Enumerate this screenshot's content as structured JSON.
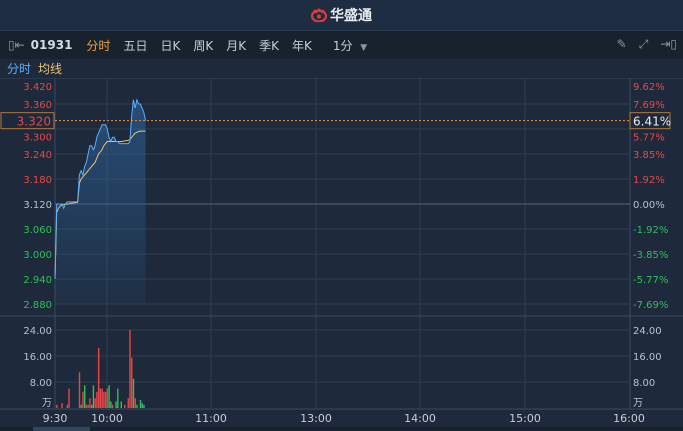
{
  "header": {
    "brand": "华盛通",
    "logo_icon": "huasheng-logo-icon"
  },
  "toolbar": {
    "code": "01931",
    "tabs": [
      "分时",
      "五日",
      "日K",
      "周K",
      "月K",
      "季K",
      "年K"
    ],
    "active_tab": "分时",
    "interval": "1分",
    "icons": [
      "collapse-left-icon",
      "pencil-icon",
      "fullscreen-icon",
      "expand-right-icon"
    ]
  },
  "legend": {
    "price": "分时",
    "avg": "均线"
  },
  "colors": {
    "up": "#e84646",
    "down": "#2fbf5b",
    "price_line": "#5aaeff",
    "avg_line": "#f0c36a",
    "cursor": "#e8903a"
  },
  "chart_data": {
    "type": "line",
    "prev_close": 3.12,
    "current_price": "3.320",
    "current_pct": "6.41%",
    "price_ticks": [
      "3.420",
      "3.360",
      "3.300",
      "3.240",
      "3.180",
      "3.120",
      "3.060",
      "3.000",
      "2.940",
      "2.880"
    ],
    "pct_ticks": [
      "9.62%",
      "7.69%",
      "5.77%",
      "3.85%",
      "1.92%",
      "0.00%",
      "-1.92%",
      "-3.85%",
      "-5.77%",
      "-7.69%"
    ],
    "ylim": [
      2.88,
      3.42
    ],
    "volume_ticks": [
      "24.00",
      "16.00",
      "8.00"
    ],
    "volume_unit": "万",
    "volume_ylim": [
      0,
      24
    ],
    "time_ticks": [
      "9:30",
      "10:00",
      "11:00",
      "13:00",
      "14:00",
      "15:00",
      "16:00"
    ],
    "price": [
      2.94,
      3.12,
      3.12,
      3.12,
      3.12,
      3.11,
      3.12,
      3.125,
      3.125,
      3.125,
      3.125,
      3.125,
      3.125,
      3.125,
      3.19,
      3.2,
      3.19,
      3.21,
      3.22,
      3.24,
      3.26,
      3.26,
      3.25,
      3.26,
      3.28,
      3.29,
      3.3,
      3.31,
      3.31,
      3.31,
      3.3,
      3.28,
      3.27,
      3.28,
      3.28,
      3.27,
      3.27,
      3.265,
      3.265,
      3.265,
      3.265,
      3.265,
      3.265,
      3.27,
      3.33,
      3.37,
      3.35,
      3.37,
      3.36,
      3.36,
      3.35,
      3.34,
      3.32
    ],
    "avg": [
      2.94,
      3.1,
      3.11,
      3.115,
      3.118,
      3.118,
      3.12,
      3.12,
      3.12,
      3.122,
      3.122,
      3.123,
      3.123,
      3.124,
      3.17,
      3.18,
      3.185,
      3.19,
      3.195,
      3.2,
      3.205,
      3.21,
      3.215,
      3.22,
      3.23,
      3.24,
      3.245,
      3.25,
      3.26,
      3.265,
      3.27,
      3.27,
      3.27,
      3.27,
      3.27,
      3.27,
      3.27,
      3.27,
      3.27,
      3.27,
      3.272,
      3.272,
      3.273,
      3.275,
      3.28,
      3.285,
      3.29,
      3.292,
      3.294,
      3.295,
      3.295,
      3.295,
      3.295
    ],
    "volume": [
      0,
      1,
      0,
      0,
      1.5,
      0,
      0,
      1,
      6,
      0,
      0,
      0,
      0,
      0,
      11,
      1,
      5,
      7,
      1,
      1,
      3,
      1,
      7,
      3,
      5,
      18.5,
      6,
      6,
      5,
      5,
      6,
      7,
      2,
      1,
      0,
      2,
      6,
      0,
      2,
      0,
      1,
      0,
      3,
      24,
      15.5,
      9,
      3,
      1,
      0,
      2.5,
      1.5,
      1,
      0
    ],
    "volume_dir": [
      "u",
      "u",
      "u",
      "u",
      "u",
      "u",
      "u",
      "u",
      "u",
      "u",
      "u",
      "u",
      "u",
      "u",
      "u",
      "d",
      "u",
      "d",
      "u",
      "u",
      "u",
      "d",
      "d",
      "u",
      "u",
      "u",
      "u",
      "u",
      "u",
      "u",
      "u",
      "d",
      "d",
      "u",
      "u",
      "d",
      "d",
      "d",
      "d",
      "d",
      "u",
      "u",
      "u",
      "u",
      "u",
      "d",
      "u",
      "d",
      "d",
      "d",
      "d",
      "d",
      "d"
    ]
  }
}
